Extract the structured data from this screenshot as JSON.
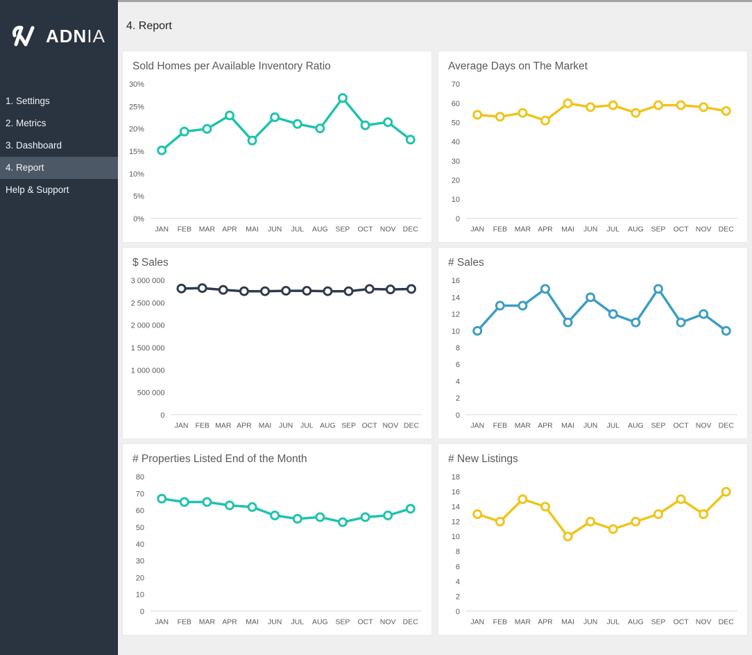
{
  "sidebar": {
    "brand": {
      "bold": "ADN",
      "light": "IA"
    },
    "items": [
      {
        "label": "1. Settings",
        "active": false
      },
      {
        "label": "2. Metrics",
        "active": false
      },
      {
        "label": "3. Dashboard",
        "active": false
      },
      {
        "label": "4. Report",
        "active": true
      },
      {
        "label": "Help & Support",
        "active": false
      }
    ]
  },
  "header": {
    "title": "4. Report"
  },
  "colors": {
    "sidebar_bg": "#2a3340",
    "sidebar_active_bg": "#4d5866",
    "main_bg": "#efefef",
    "card_bg": "#ffffff",
    "axis_text": "#595959",
    "axis_line": "#d9d9d9",
    "teal": "#1ec3ae",
    "yellow": "#f0c41b",
    "dark_navy": "#2f3b4c",
    "blue": "#3d9dc4"
  },
  "chart_data": [
    {
      "type": "line",
      "title": "Sold Homes per Available Inventory Ratio",
      "categories": [
        "JAN",
        "FEB",
        "MAR",
        "APR",
        "MAI",
        "JUN",
        "JUL",
        "AUG",
        "SEP",
        "OCT",
        "NOV",
        "DEC"
      ],
      "values": [
        15.2,
        19.4,
        20.0,
        23.0,
        17.4,
        22.6,
        21.1,
        20.1,
        26.9,
        20.8,
        21.5,
        17.6
      ],
      "ylim": [
        0,
        30
      ],
      "ytick_step": 5,
      "ytick_suffix": "%",
      "thousands_sep": false,
      "color": "#1ec3ae",
      "grid": false,
      "legend": "none"
    },
    {
      "type": "line",
      "title": "Average Days on The Market",
      "categories": [
        "JAN",
        "FEB",
        "MAR",
        "APR",
        "MAI",
        "JUN",
        "JUL",
        "AUG",
        "SEP",
        "OCT",
        "NOV",
        "DEC"
      ],
      "values": [
        54,
        53,
        55,
        51,
        60,
        58,
        59,
        55,
        59,
        59,
        58,
        56
      ],
      "ylim": [
        0,
        70
      ],
      "ytick_step": 10,
      "ytick_suffix": "",
      "thousands_sep": false,
      "color": "#f0c41b",
      "grid": false,
      "legend": "none"
    },
    {
      "type": "line",
      "title": "$ Sales",
      "categories": [
        "JAN",
        "FEB",
        "MAR",
        "APR",
        "MAI",
        "JUN",
        "JUL",
        "AUG",
        "SEP",
        "OCT",
        "NOV",
        "DEC"
      ],
      "values": [
        2820000,
        2830000,
        2790000,
        2760000,
        2760000,
        2770000,
        2770000,
        2760000,
        2760000,
        2810000,
        2800000,
        2810000
      ],
      "ylim": [
        0,
        3000000
      ],
      "ytick_step": 500000,
      "ytick_suffix": "",
      "thousands_sep": true,
      "color": "#2f3b4c",
      "grid": false,
      "legend": "none"
    },
    {
      "type": "line",
      "title": "# Sales",
      "categories": [
        "JAN",
        "FEB",
        "MAR",
        "APR",
        "MAI",
        "JUN",
        "JUL",
        "AUG",
        "SEP",
        "OCT",
        "NOV",
        "DEC"
      ],
      "values": [
        10,
        13,
        13,
        15,
        11,
        14,
        12,
        11,
        15,
        11,
        12,
        10
      ],
      "ylim": [
        0,
        16
      ],
      "ytick_step": 2,
      "ytick_suffix": "",
      "thousands_sep": false,
      "color": "#3d9dc4",
      "grid": false,
      "legend": "none"
    },
    {
      "type": "line",
      "title": "# Properties Listed End of the Month",
      "categories": [
        "JAN",
        "FEB",
        "MAR",
        "APR",
        "MAI",
        "JUN",
        "JUL",
        "AUG",
        "SEP",
        "OCT",
        "NOV",
        "DEC"
      ],
      "values": [
        67,
        65,
        65,
        63,
        62,
        57,
        55,
        56,
        53,
        56,
        57,
        61
      ],
      "ylim": [
        0,
        80
      ],
      "ytick_step": 10,
      "ytick_suffix": "",
      "thousands_sep": false,
      "color": "#1ec3ae",
      "grid": false,
      "legend": "none"
    },
    {
      "type": "line",
      "title": "# New Listings",
      "categories": [
        "JAN",
        "FEB",
        "MAR",
        "APR",
        "MAI",
        "JUN",
        "JUL",
        "AUG",
        "SEP",
        "OCT",
        "NOV",
        "DEC"
      ],
      "values": [
        13,
        12,
        15,
        14,
        10,
        12,
        11,
        12,
        13,
        15,
        13,
        16
      ],
      "ylim": [
        0,
        18
      ],
      "ytick_step": 2,
      "ytick_suffix": "",
      "thousands_sep": false,
      "color": "#f0c41b",
      "grid": false,
      "legend": "none"
    }
  ]
}
